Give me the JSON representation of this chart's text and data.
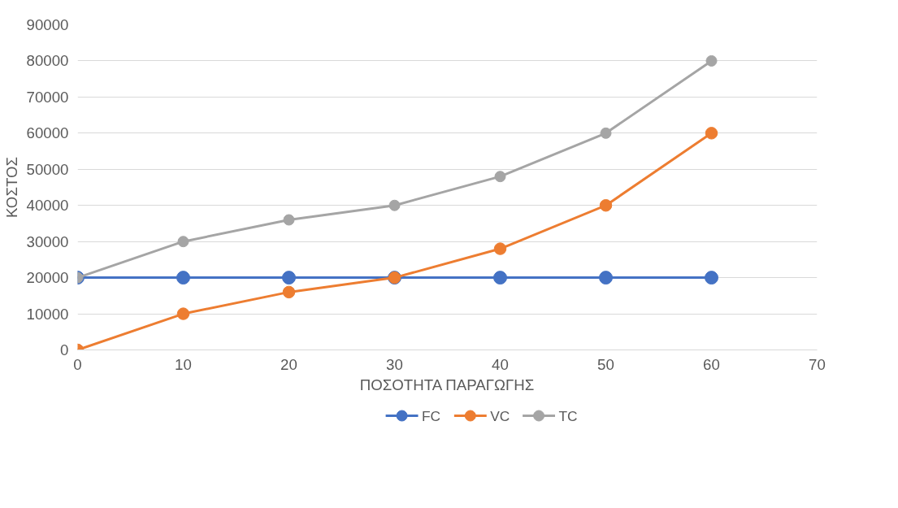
{
  "chart_data": {
    "type": "line",
    "xlabel": "ΠΟΣΟΤΗΤΑ ΠΑΡΑΓΩΓΗΣ",
    "ylabel": "ΚΟΣΤΟΣ",
    "x": [
      0,
      10,
      20,
      30,
      40,
      50,
      60
    ],
    "series": [
      {
        "name": "FC",
        "color": "#4472c4",
        "values": [
          20000,
          20000,
          20000,
          20000,
          20000,
          20000,
          20000
        ]
      },
      {
        "name": "VC",
        "color": "#ed7d31",
        "values": [
          0,
          10000,
          16000,
          20000,
          28000,
          40000,
          60000
        ]
      },
      {
        "name": "TC",
        "color": "#a5a5a5",
        "values": [
          20000,
          30000,
          36000,
          40000,
          48000,
          60000,
          80000
        ]
      }
    ],
    "xlim": [
      0,
      70
    ],
    "xticks": [
      0,
      10,
      20,
      30,
      40,
      50,
      60,
      70
    ],
    "ylim": [
      0,
      90000
    ],
    "yticks": [
      0,
      10000,
      20000,
      30000,
      40000,
      50000,
      60000,
      70000,
      80000,
      90000
    ],
    "grid": "y",
    "legend": "bottom",
    "marker": "circle",
    "line_style": "solid"
  }
}
